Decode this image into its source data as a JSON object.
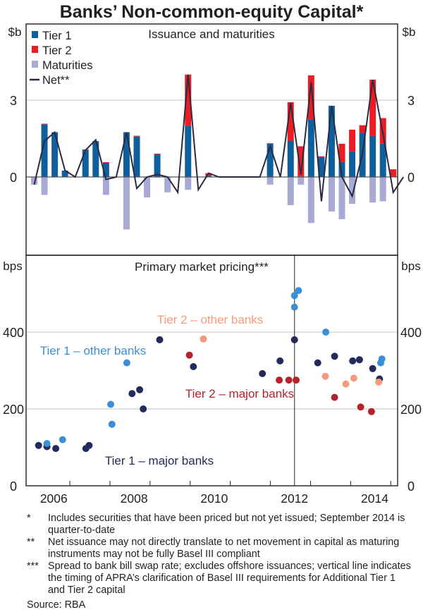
{
  "title": "Banks’ Non-common-equity Capital*",
  "colors": {
    "tier1": "#0f5f9c",
    "tier2": "#ed1c24",
    "maturities": "#a9a9d6",
    "net": "#2a2a40",
    "t1_major": "#232a5c",
    "t1_other": "#3a8fd6",
    "t2_major": "#b5222b",
    "t2_other": "#f79a7c",
    "grid": "#cfcfcf",
    "axis": "#231f20"
  },
  "chart_data": [
    {
      "type": "bar",
      "panel": "top",
      "title": "Issuance and maturities",
      "ylabel_left": "$b",
      "ylabel_right": "$b",
      "ylim": [
        -3.4,
        4.2
      ],
      "yticks": [
        0,
        3
      ],
      "grid": true,
      "legend_placement": "top-left",
      "legend": [
        "Tier 1",
        "Tier 2",
        "Maturities",
        "Net**"
      ],
      "x_unit": "quarters",
      "x_start": "2005-Q3",
      "categories": [
        "2005Q3",
        "2005Q4",
        "2006Q1",
        "2006Q2",
        "2006Q3",
        "2006Q4",
        "2007Q1",
        "2007Q2",
        "2007Q3",
        "2007Q4",
        "2008Q1",
        "2008Q2",
        "2008Q3",
        "2008Q4",
        "2009Q1",
        "2009Q2",
        "2009Q3",
        "2009Q4",
        "2010Q1",
        "2010Q2",
        "2010Q3",
        "2010Q4",
        "2011Q1",
        "2011Q2",
        "2011Q3",
        "2011Q4",
        "2012Q1",
        "2012Q2",
        "2012Q3",
        "2012Q4",
        "2013Q1",
        "2013Q2",
        "2013Q3",
        "2013Q4",
        "2014Q1",
        "2014Q2",
        "2014Q3"
      ],
      "series": [
        {
          "name": "Tier 1",
          "values": [
            0,
            2.05,
            1.75,
            0.25,
            0,
            1.05,
            1.4,
            0.55,
            0,
            1.75,
            1.58,
            0,
            0.88,
            0,
            0,
            2.0,
            0,
            0.05,
            0,
            0,
            0,
            0,
            0,
            1.3,
            0,
            1.42,
            0.02,
            2.25,
            0.78,
            2.78,
            0.58,
            1.0,
            1.72,
            1.6,
            1.3,
            0,
            0
          ]
        },
        {
          "name": "Tier 2",
          "values": [
            0,
            0.03,
            0,
            0,
            0,
            0.03,
            0,
            0.03,
            0,
            0,
            0.03,
            0,
            0.03,
            0,
            0,
            2.0,
            0,
            0.1,
            0,
            0,
            0,
            0,
            0,
            0.02,
            0,
            1.5,
            1.18,
            1.72,
            0.03,
            0,
            0.72,
            0.85,
            0.3,
            2.2,
            1.0,
            0.3,
            0
          ]
        },
        {
          "name": "Maturities",
          "values": [
            -0.3,
            -0.7,
            0,
            0,
            0,
            0,
            0,
            -0.7,
            0,
            -2.05,
            0,
            -0.8,
            0,
            -0.6,
            0,
            -0.5,
            0,
            0,
            0,
            0,
            0,
            0,
            0,
            -0.3,
            0,
            -1.1,
            -0.3,
            -1.8,
            0,
            -1.35,
            -1.65,
            -1.05,
            0,
            -1.0,
            -0.95,
            0,
            0
          ]
        },
        {
          "name": "Net**",
          "type": "line",
          "values": [
            -0.3,
            1.4,
            1.75,
            0.25,
            0,
            1.05,
            1.45,
            -0.1,
            0,
            1.75,
            -0.45,
            0,
            0.1,
            0,
            -0.6,
            4.0,
            -0.5,
            0.15,
            0,
            0,
            0,
            0,
            0,
            1.2,
            0,
            2.9,
            0.1,
            3.7,
            -0.95,
            2.78,
            0,
            -0.75,
            0.9,
            3.8,
            1.7,
            -0.6,
            0
          ]
        }
      ]
    },
    {
      "type": "scatter",
      "panel": "bottom",
      "title": "Primary market pricing***",
      "ylabel_left": "bps",
      "ylabel_right": "bps",
      "ylim": [
        0,
        580
      ],
      "yticks": [
        0,
        200,
        400
      ],
      "xlim": [
        2005.55,
        2014.8
      ],
      "xticks": [
        2006,
        2008,
        2010,
        2012,
        2014
      ],
      "vline_x": 2012.1,
      "grid": true,
      "annotations": [
        {
          "text": "Tier 2 – other banks",
          "series": "t2_other"
        },
        {
          "text": "Tier 1 – other banks",
          "series": "t1_other"
        },
        {
          "text": "Tier 2 – major banks",
          "series": "t2_major"
        },
        {
          "text": "Tier 1 – major banks",
          "series": "t1_major"
        }
      ],
      "series": [
        {
          "name": "Tier 1 – major banks",
          "key": "t1_major",
          "points": [
            [
              2005.72,
              105
            ],
            [
              2005.93,
              102
            ],
            [
              2006.15,
              97
            ],
            [
              2006.9,
              97
            ],
            [
              2006.98,
              105
            ],
            [
              2008.05,
              240
            ],
            [
              2008.24,
              250
            ],
            [
              2008.33,
              200
            ],
            [
              2008.74,
              380
            ],
            [
              2009.58,
              310
            ],
            [
              2011.3,
              292
            ],
            [
              2011.74,
              325
            ],
            [
              2012.1,
              380
            ],
            [
              2012.68,
              320
            ],
            [
              2013.1,
              337
            ],
            [
              2013.55,
              325
            ],
            [
              2013.72,
              328
            ],
            [
              2014.05,
              305
            ],
            [
              2014.22,
              278
            ]
          ]
        },
        {
          "name": "Tier 1 – other banks",
          "key": "t1_other",
          "points": [
            [
              2005.93,
              110
            ],
            [
              2006.32,
              120
            ],
            [
              2007.52,
              212
            ],
            [
              2007.55,
              160
            ],
            [
              2007.92,
              320
            ],
            [
              2012.1,
              495
            ],
            [
              2012.2,
              508
            ],
            [
              2012.1,
              465
            ],
            [
              2012.88,
              400
            ],
            [
              2014.28,
              330
            ],
            [
              2014.25,
              320
            ]
          ]
        },
        {
          "name": "Tier 2 – major banks",
          "key": "t2_major",
          "points": [
            [
              2009.48,
              340
            ],
            [
              2011.72,
              275
            ],
            [
              2011.96,
              275
            ],
            [
              2012.14,
              275
            ],
            [
              2013.1,
              230
            ],
            [
              2013.75,
              205
            ],
            [
              2014.02,
              193
            ]
          ]
        },
        {
          "name": "Tier 2 – other banks",
          "key": "t2_other",
          "points": [
            [
              2009.83,
              382
            ],
            [
              2012.87,
              285
            ],
            [
              2013.38,
              265
            ],
            [
              2013.58,
              280
            ],
            [
              2014.2,
              270
            ]
          ]
        }
      ],
      "xlabel_ticks": [
        "2006",
        "2008",
        "2010",
        "2012",
        "2014"
      ]
    }
  ],
  "footnotes": [
    {
      "marker": "*",
      "text": "Includes securities that have been priced but not yet issued; September 2014 is quarter-to-date"
    },
    {
      "marker": "**",
      "text": "Net issuance may not directly translate to net movement in capital as maturing instruments may not be fully Basel III compliant"
    },
    {
      "marker": "***",
      "text": "Spread to bank bill swap rate; excludes offshore issuances; vertical line indicates the timing of APRA’s clarification of Basel III requirements for Additional Tier 1 and Tier 2 capital"
    }
  ],
  "source": "Source: RBA"
}
